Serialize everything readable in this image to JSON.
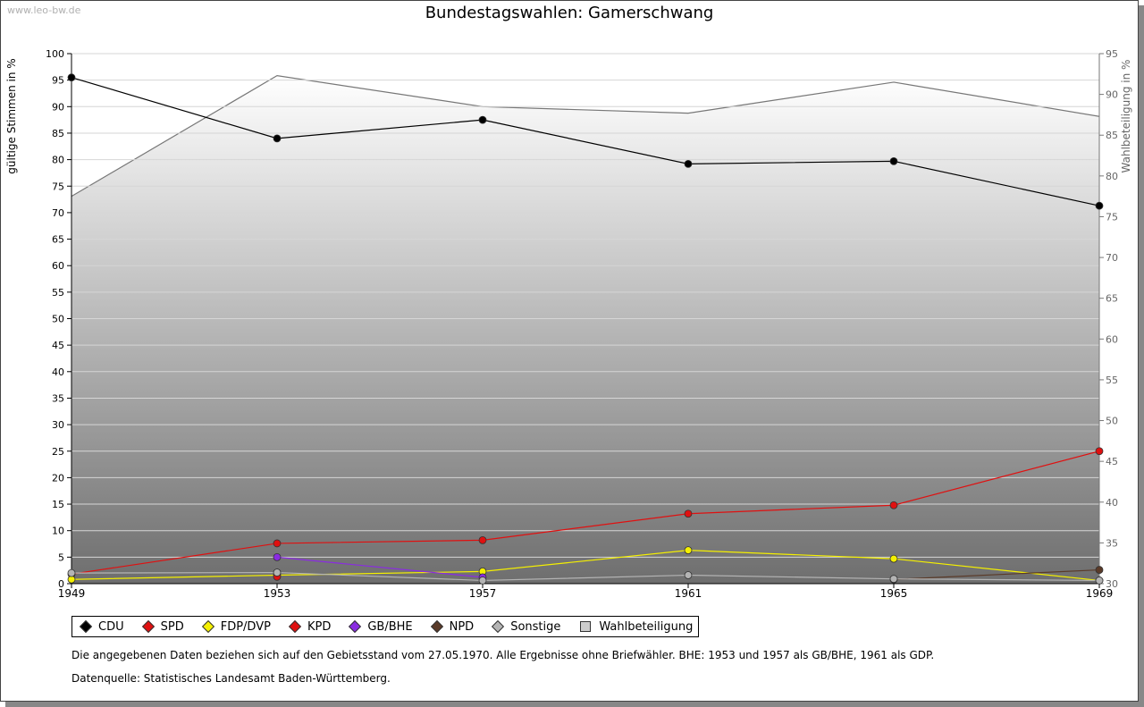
{
  "watermark": "www.leo-bw.de",
  "chart_data": {
    "type": "line",
    "title": "Bundestagswahlen: Gamerschwang",
    "xlabel": "",
    "ylabel": "gültige Stimmen in %",
    "y2label": "Wahlbeteiligung in %",
    "x": [
      "1949",
      "1953",
      "1957",
      "1961",
      "1965",
      "1969"
    ],
    "ylim": [
      0,
      100
    ],
    "y2lim": [
      30,
      95
    ],
    "yticks": [
      0,
      5,
      10,
      15,
      20,
      25,
      30,
      35,
      40,
      45,
      50,
      55,
      60,
      65,
      70,
      75,
      80,
      85,
      90,
      95,
      100
    ],
    "y2ticks": [
      30,
      35,
      40,
      45,
      50,
      55,
      60,
      65,
      70,
      75,
      80,
      85,
      90,
      95
    ],
    "grid": true,
    "legend_position": "bottom",
    "area_series": {
      "name": "Wahlbeteiligung",
      "axis": "right",
      "color": "#777777",
      "values": [
        77.5,
        92.3,
        88.5,
        87.7,
        91.5,
        87.3
      ]
    },
    "series": [
      {
        "name": "CDU",
        "color": "#000000",
        "values": [
          95.5,
          84.0,
          87.5,
          79.2,
          79.7,
          71.3
        ]
      },
      {
        "name": "SPD",
        "color": "#e01010",
        "values": [
          1.8,
          7.6,
          8.2,
          13.2,
          14.8,
          25.0
        ]
      },
      {
        "name": "FDP/DVP",
        "color": "#f5f000",
        "values": [
          0.8,
          1.6,
          2.3,
          6.3,
          4.7,
          0.6
        ]
      },
      {
        "name": "KPD",
        "color": "#e01010",
        "values": [
          null,
          1.3,
          null,
          null,
          null,
          null
        ]
      },
      {
        "name": "GB/BHE",
        "color": "#8a2be2",
        "values": [
          null,
          5.0,
          1.2,
          null,
          null,
          null
        ]
      },
      {
        "name": "NPD",
        "color": "#5a3a28",
        "values": [
          null,
          null,
          null,
          null,
          0.8,
          2.6
        ]
      },
      {
        "name": "Sonstige",
        "color": "#b4b4b4",
        "values": [
          2.0,
          2.1,
          0.6,
          1.6,
          0.9,
          0.6
        ]
      }
    ]
  },
  "legend": [
    {
      "label": "CDU",
      "color": "#000000",
      "shape": "diamond"
    },
    {
      "label": "SPD",
      "color": "#e01010",
      "shape": "diamond"
    },
    {
      "label": "FDP/DVP",
      "color": "#f5f000",
      "shape": "diamond"
    },
    {
      "label": "KPD",
      "color": "#e01010",
      "shape": "diamond"
    },
    {
      "label": "GB/BHE",
      "color": "#8a2be2",
      "shape": "diamond"
    },
    {
      "label": "NPD",
      "color": "#5a3a28",
      "shape": "diamond"
    },
    {
      "label": "Sonstige",
      "color": "#b4b4b4",
      "shape": "diamond"
    },
    {
      "label": "Wahlbeteiligung",
      "color": "#cccccc",
      "shape": "square"
    }
  ],
  "note": "Die angegebenen Daten beziehen sich auf den Gebietsstand vom 27.05.1970. Alle Ergebnisse ohne Briefwähler. BHE: 1953 und 1957 als GB/BHE, 1961 als GDP.",
  "source": "Datenquelle: Statistisches Landesamt Baden-Württemberg."
}
